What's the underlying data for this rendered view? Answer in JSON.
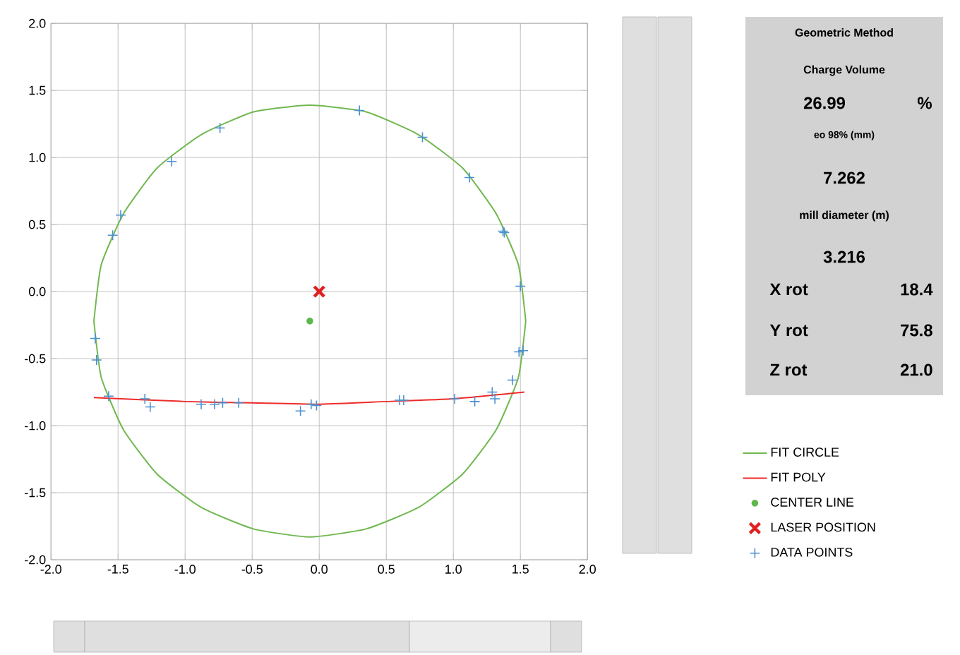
{
  "chart_data": [
    {
      "type": "scatter",
      "xlim": [
        -2,
        2
      ],
      "ylim": [
        -2,
        2
      ],
      "xticks": [
        {
          "value": -2,
          "label": "-2.0"
        },
        {
          "value": -1.5,
          "label": "-1.5"
        },
        {
          "value": -1,
          "label": "-1.0"
        },
        {
          "value": -0.5,
          "label": "-0.5"
        },
        {
          "value": 0,
          "label": "0.0"
        },
        {
          "value": 0.5,
          "label": "0.5"
        },
        {
          "value": 1,
          "label": "1.0"
        },
        {
          "value": 1.5,
          "label": "1.5"
        },
        {
          "value": 2,
          "label": "2.0"
        }
      ],
      "yticks": [
        {
          "value": -2,
          "label": "-2.0"
        },
        {
          "value": -1.5,
          "label": "-1.5"
        },
        {
          "value": -1,
          "label": "-1.0"
        },
        {
          "value": -0.5,
          "label": "-0.5"
        },
        {
          "value": 0,
          "label": "0.0"
        },
        {
          "value": 0.5,
          "label": "0.5"
        },
        {
          "value": 1,
          "label": "1.0"
        },
        {
          "value": 1.5,
          "label": "1.5"
        },
        {
          "value": 2,
          "label": "2.0"
        }
      ],
      "grid": true,
      "legend": "right",
      "series": [
        {
          "name": "FIT CIRCLE",
          "type": "line",
          "color": "#70b850",
          "marker": "none",
          "x": [
            -1.68,
            -1.625,
            -1.46,
            -1.21,
            -0.88,
            -0.49,
            -0.07,
            0.35,
            0.74,
            1.07,
            1.32,
            1.485,
            1.54,
            null,
            -1.68,
            -1.625,
            -1.46,
            -1.21,
            -0.88,
            -0.49,
            -0.07,
            0.35,
            0.74,
            1.07,
            1.32,
            1.485,
            1.54
          ],
          "values": [
            -0.22,
            0.2,
            0.58,
            0.92,
            1.17,
            1.34,
            1.39,
            1.34,
            1.17,
            0.92,
            0.58,
            0.2,
            -0.22,
            null,
            -0.22,
            -0.64,
            -1.03,
            -1.36,
            -1.61,
            -1.77,
            -1.83,
            -1.77,
            -1.61,
            -1.36,
            -1.03,
            -0.64,
            -0.22
          ]
        },
        {
          "name": "FIT POLY",
          "type": "line",
          "color": "#ee2b2b",
          "marker": "none",
          "x": [
            -1.68,
            -1.0,
            -0.5,
            0,
            0.5,
            1.0,
            1.53
          ],
          "values": [
            -0.79,
            -0.82,
            -0.83,
            -0.84,
            -0.82,
            -0.8,
            -0.75
          ]
        },
        {
          "name": "CENTER LINE",
          "type": "scatter",
          "color": "#5cb84a",
          "marker": "circle",
          "x": [
            -0.07
          ],
          "values": [
            -0.22
          ]
        },
        {
          "name": "LASER POSITION",
          "type": "scatter",
          "color": "#e02020",
          "marker": "x",
          "x": [
            0
          ],
          "values": [
            0
          ]
        },
        {
          "name": "DATA POINTS",
          "type": "scatter",
          "color": "#4a90d0",
          "marker": "cross",
          "x": [
            0.3,
            0.77,
            1.12,
            1.37,
            1.38,
            1.5,
            1.49,
            1.52,
            1.44,
            1.29,
            1.31,
            1.16,
            1.01,
            0.6,
            0.63,
            -0.06,
            -0.02,
            -0.14,
            -0.6,
            -0.72,
            -0.78,
            -0.88,
            -1.26,
            -1.3,
            -1.57,
            -1.66,
            -1.67,
            -1.54,
            -1.48,
            -1.1,
            -0.74
          ],
          "values": [
            1.35,
            1.15,
            0.85,
            0.45,
            0.44,
            0.04,
            -0.45,
            -0.44,
            -0.66,
            -0.75,
            -0.8,
            -0.82,
            -0.8,
            -0.81,
            -0.81,
            -0.84,
            -0.85,
            -0.89,
            -0.83,
            -0.83,
            -0.84,
            -0.84,
            -0.86,
            -0.8,
            -0.78,
            -0.51,
            -0.35,
            0.42,
            0.57,
            0.97,
            1.22
          ]
        }
      ]
    },
    {
      "type": "other",
      "title": "Geometric Method",
      "annotations": [
        "Charge Volume",
        "26.99",
        "%",
        "eo 98% (mm)",
        "7.262",
        "mill diameter (m)",
        "3.216",
        "X rot",
        "18.4",
        "Y rot",
        "75.8",
        "Z rot",
        "21.0"
      ]
    }
  ]
}
